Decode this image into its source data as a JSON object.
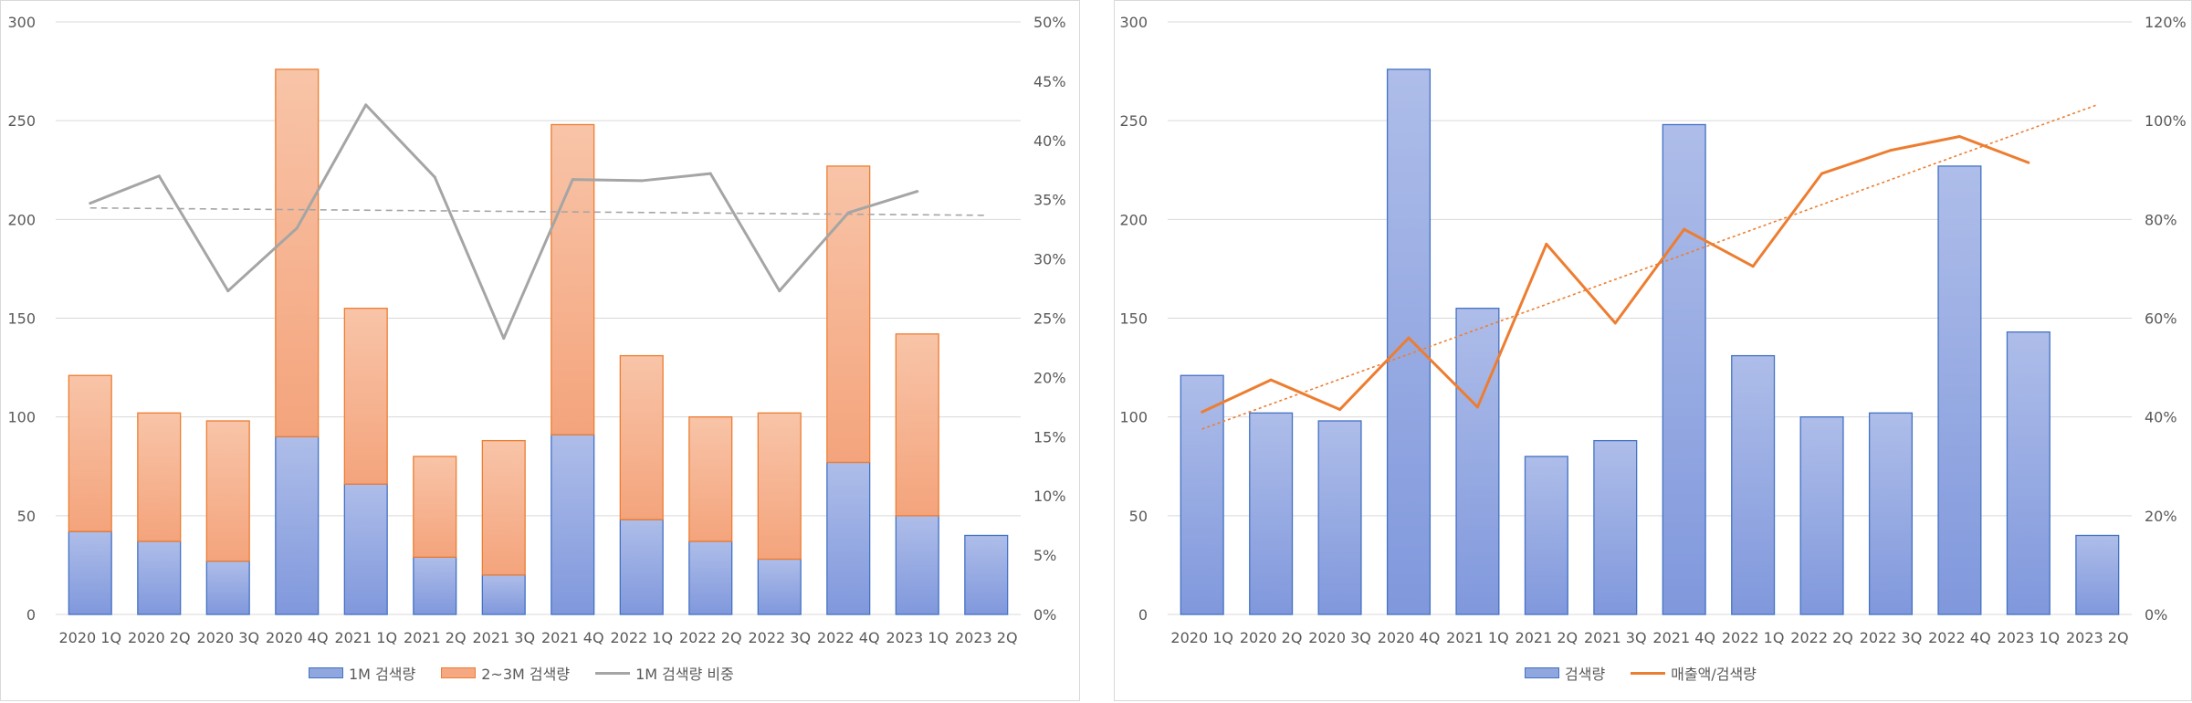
{
  "chart_data": [
    {
      "type": "bar",
      "stacked": true,
      "categories": [
        "2020 1Q",
        "2020 2Q",
        "2020 3Q",
        "2020 4Q",
        "2021 1Q",
        "2021 2Q",
        "2021 3Q",
        "2021 4Q",
        "2022 1Q",
        "2022 2Q",
        "2022 3Q",
        "2022 4Q",
        "2023 1Q",
        "2023 2Q"
      ],
      "series": [
        {
          "name": "1M 검색량",
          "kind": "bar",
          "axis": "left",
          "color": "#8fa6df",
          "stroke": "#4472c4",
          "values": [
            42,
            37,
            27,
            90,
            66,
            29,
            20,
            91,
            48,
            37,
            28,
            77,
            50,
            40
          ]
        },
        {
          "name": "2~3M 검색량",
          "kind": "bar",
          "axis": "left",
          "color": "#f5a882",
          "stroke": "#ed7d31",
          "values": [
            79,
            65,
            71,
            186,
            89,
            51,
            68,
            157,
            83,
            63,
            74,
            150,
            92,
            null
          ]
        },
        {
          "name": "1M 검색량 비중",
          "kind": "line",
          "axis": "right",
          "color": "#a5a5a5",
          "values": [
            0.347,
            0.37,
            0.273,
            0.326,
            0.43,
            0.369,
            0.233,
            0.367,
            0.366,
            0.372,
            0.273,
            0.339,
            0.357,
            null
          ]
        }
      ],
      "trendline": {
        "series": "1M 검색량 비중",
        "type": "linear",
        "style": "dashed",
        "color": "#a5a5a5"
      },
      "ylim": [
        0,
        300
      ],
      "yticks": [
        "0",
        "50",
        "100",
        "150",
        "200",
        "250",
        "300"
      ],
      "y2lim": [
        0,
        0.5
      ],
      "y2ticks": [
        "0%",
        "5%",
        "10%",
        "15%",
        "20%",
        "25%",
        "30%",
        "35%",
        "40%",
        "45%",
        "50%"
      ],
      "grid": true,
      "legend_position": "bottom"
    },
    {
      "type": "bar",
      "categories": [
        "2020 1Q",
        "2020 2Q",
        "2020 3Q",
        "2020 4Q",
        "2021 1Q",
        "2021 2Q",
        "2021 3Q",
        "2021 4Q",
        "2022 1Q",
        "2022 2Q",
        "2022 3Q",
        "2022 4Q",
        "2023 1Q",
        "2023 2Q"
      ],
      "series": [
        {
          "name": "검색량",
          "kind": "bar",
          "axis": "left",
          "color": "#8fa6df",
          "stroke": "#4472c4",
          "values": [
            121,
            102,
            98,
            276,
            155,
            80,
            88,
            248,
            131,
            100,
            102,
            227,
            143,
            40
          ]
        },
        {
          "name": "매출액/검색량",
          "kind": "line",
          "axis": "right",
          "color": "#ed7d31",
          "values": [
            0.41,
            0.475,
            0.415,
            0.56,
            0.42,
            0.75,
            0.59,
            0.78,
            0.705,
            0.893,
            0.94,
            0.968,
            0.915,
            null
          ]
        }
      ],
      "trendline": {
        "series": "매출액/검색량",
        "type": "linear",
        "style": "dotted",
        "color": "#ed7d31"
      },
      "ylim": [
        0,
        300
      ],
      "yticks": [
        "0",
        "50",
        "100",
        "150",
        "200",
        "250",
        "300"
      ],
      "y2lim": [
        0,
        1.2
      ],
      "y2ticks": [
        "0%",
        "20%",
        "40%",
        "60%",
        "80%",
        "100%",
        "120%"
      ],
      "grid": true,
      "legend_position": "bottom"
    }
  ]
}
